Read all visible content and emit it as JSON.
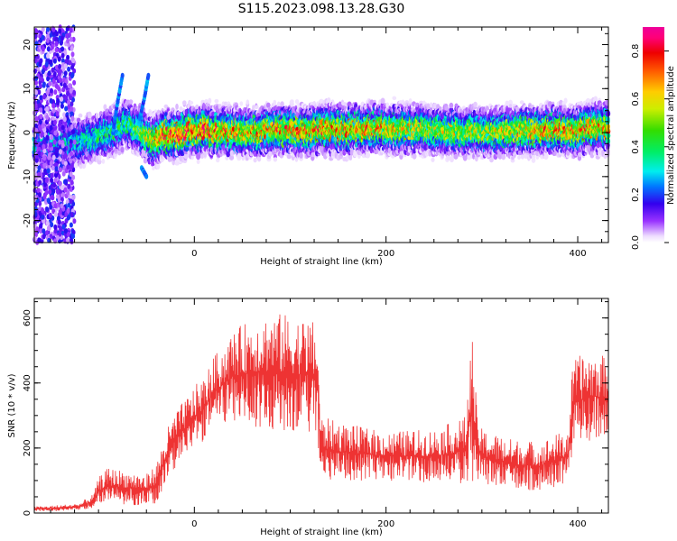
{
  "page_title": "S115.2023.098.13.28.G30",
  "colorbar": {
    "label": "Normalized spectral amplitude",
    "ticks": [
      0.0,
      0.2,
      0.4,
      0.6,
      0.8
    ],
    "tick_labels": [
      "0.0",
      "0.2",
      "0.4",
      "0.6",
      "0.8"
    ],
    "range": [
      0,
      0.9
    ],
    "colormap": "gist_ncar-like (white, purple, blue, cyan, green, yellow, orange, red, magenta)"
  },
  "chart_data": [
    {
      "type": "heatmap",
      "title": "",
      "xlabel": "Height of straight line (km)",
      "ylabel": "Frequency (Hz)",
      "xlim": [
        -167,
        432
      ],
      "ylim": [
        -25,
        24
      ],
      "xticks": [
        0,
        200,
        400
      ],
      "xtick_labels": [
        "0",
        "200",
        "400"
      ],
      "yticks": [
        -20,
        -10,
        0,
        10,
        20
      ],
      "ytick_labels": [
        "-20",
        "-10",
        "0",
        "10",
        "20"
      ],
      "ridge": {
        "description": "narrow band of high amplitude centered near 0 Hz",
        "x": [
          -130,
          -110,
          -90,
          -70,
          -55,
          -45,
          -30,
          0,
          50,
          100,
          150,
          200,
          250,
          300,
          350,
          400,
          432
        ],
        "center_hz": [
          -2.5,
          -1.5,
          0,
          2,
          0,
          -2,
          -0.5,
          0.5,
          0,
          0.5,
          0.5,
          1,
          0.5,
          0,
          0.5,
          0.5,
          1
        ],
        "peak_amplitude": [
          0.35,
          0.4,
          0.45,
          0.45,
          0.55,
          0.7,
          0.85,
          0.85,
          0.7,
          0.75,
          0.75,
          0.7,
          0.6,
          0.6,
          0.7,
          0.75,
          0.7
        ]
      },
      "features": [
        {
          "label": "noise scatter",
          "x_range": [
            -167,
            -125
          ],
          "freq_range": [
            -25,
            24
          ],
          "amplitude": 0.12
        },
        {
          "label": "arc 1",
          "x": [
            -85,
            -80,
            -75
          ],
          "freq": [
            0,
            7,
            13
          ]
        },
        {
          "label": "arc 2",
          "x": [
            -58,
            -52,
            -48
          ],
          "freq": [
            2,
            8,
            13
          ]
        },
        {
          "label": "dip",
          "x": [
            -55,
            -50
          ],
          "freq": [
            -8,
            -10
          ]
        }
      ]
    },
    {
      "type": "line",
      "title": "",
      "xlabel": "Height of straight line (km)",
      "ylabel": "SNR (10 * v/v)",
      "xlim": [
        -167,
        432
      ],
      "ylim": [
        0,
        660
      ],
      "xticks": [
        0,
        200,
        400
      ],
      "xtick_labels": [
        "0",
        "200",
        "400"
      ],
      "yticks": [
        0,
        200,
        400,
        600
      ],
      "ytick_labels": [
        "0",
        "200",
        "400",
        "600"
      ],
      "series": [
        {
          "color": "#ee3333",
          "envelope": {
            "x": [
              -167,
              -140,
              -120,
              -105,
              -100,
              -90,
              -70,
              -50,
              -40,
              -30,
              -20,
              -10,
              0,
              10,
              20,
              40,
              60,
              80,
              100,
              120,
              128,
              132,
              150,
              200,
              250,
              270,
              283,
              290,
              295,
              300,
              330,
              360,
              390,
              395,
              410,
              432
            ],
            "low": [
              5,
              5,
              10,
              15,
              25,
              30,
              25,
              20,
              30,
              80,
              140,
              170,
              200,
              220,
              260,
              280,
              270,
              250,
              250,
              250,
              250,
              100,
              100,
              100,
              90,
              90,
              90,
              90,
              100,
              90,
              70,
              70,
              90,
              200,
              220,
              230
            ],
            "high": [
              20,
              25,
              30,
              60,
              110,
              140,
              130,
              120,
              150,
              250,
              310,
              350,
              390,
              420,
              480,
              560,
              600,
              620,
              610,
              600,
              580,
              300,
              280,
              250,
              260,
              280,
              300,
              560,
              300,
              260,
              230,
              220,
              260,
              470,
              500,
              480
            ]
          }
        }
      ]
    }
  ]
}
